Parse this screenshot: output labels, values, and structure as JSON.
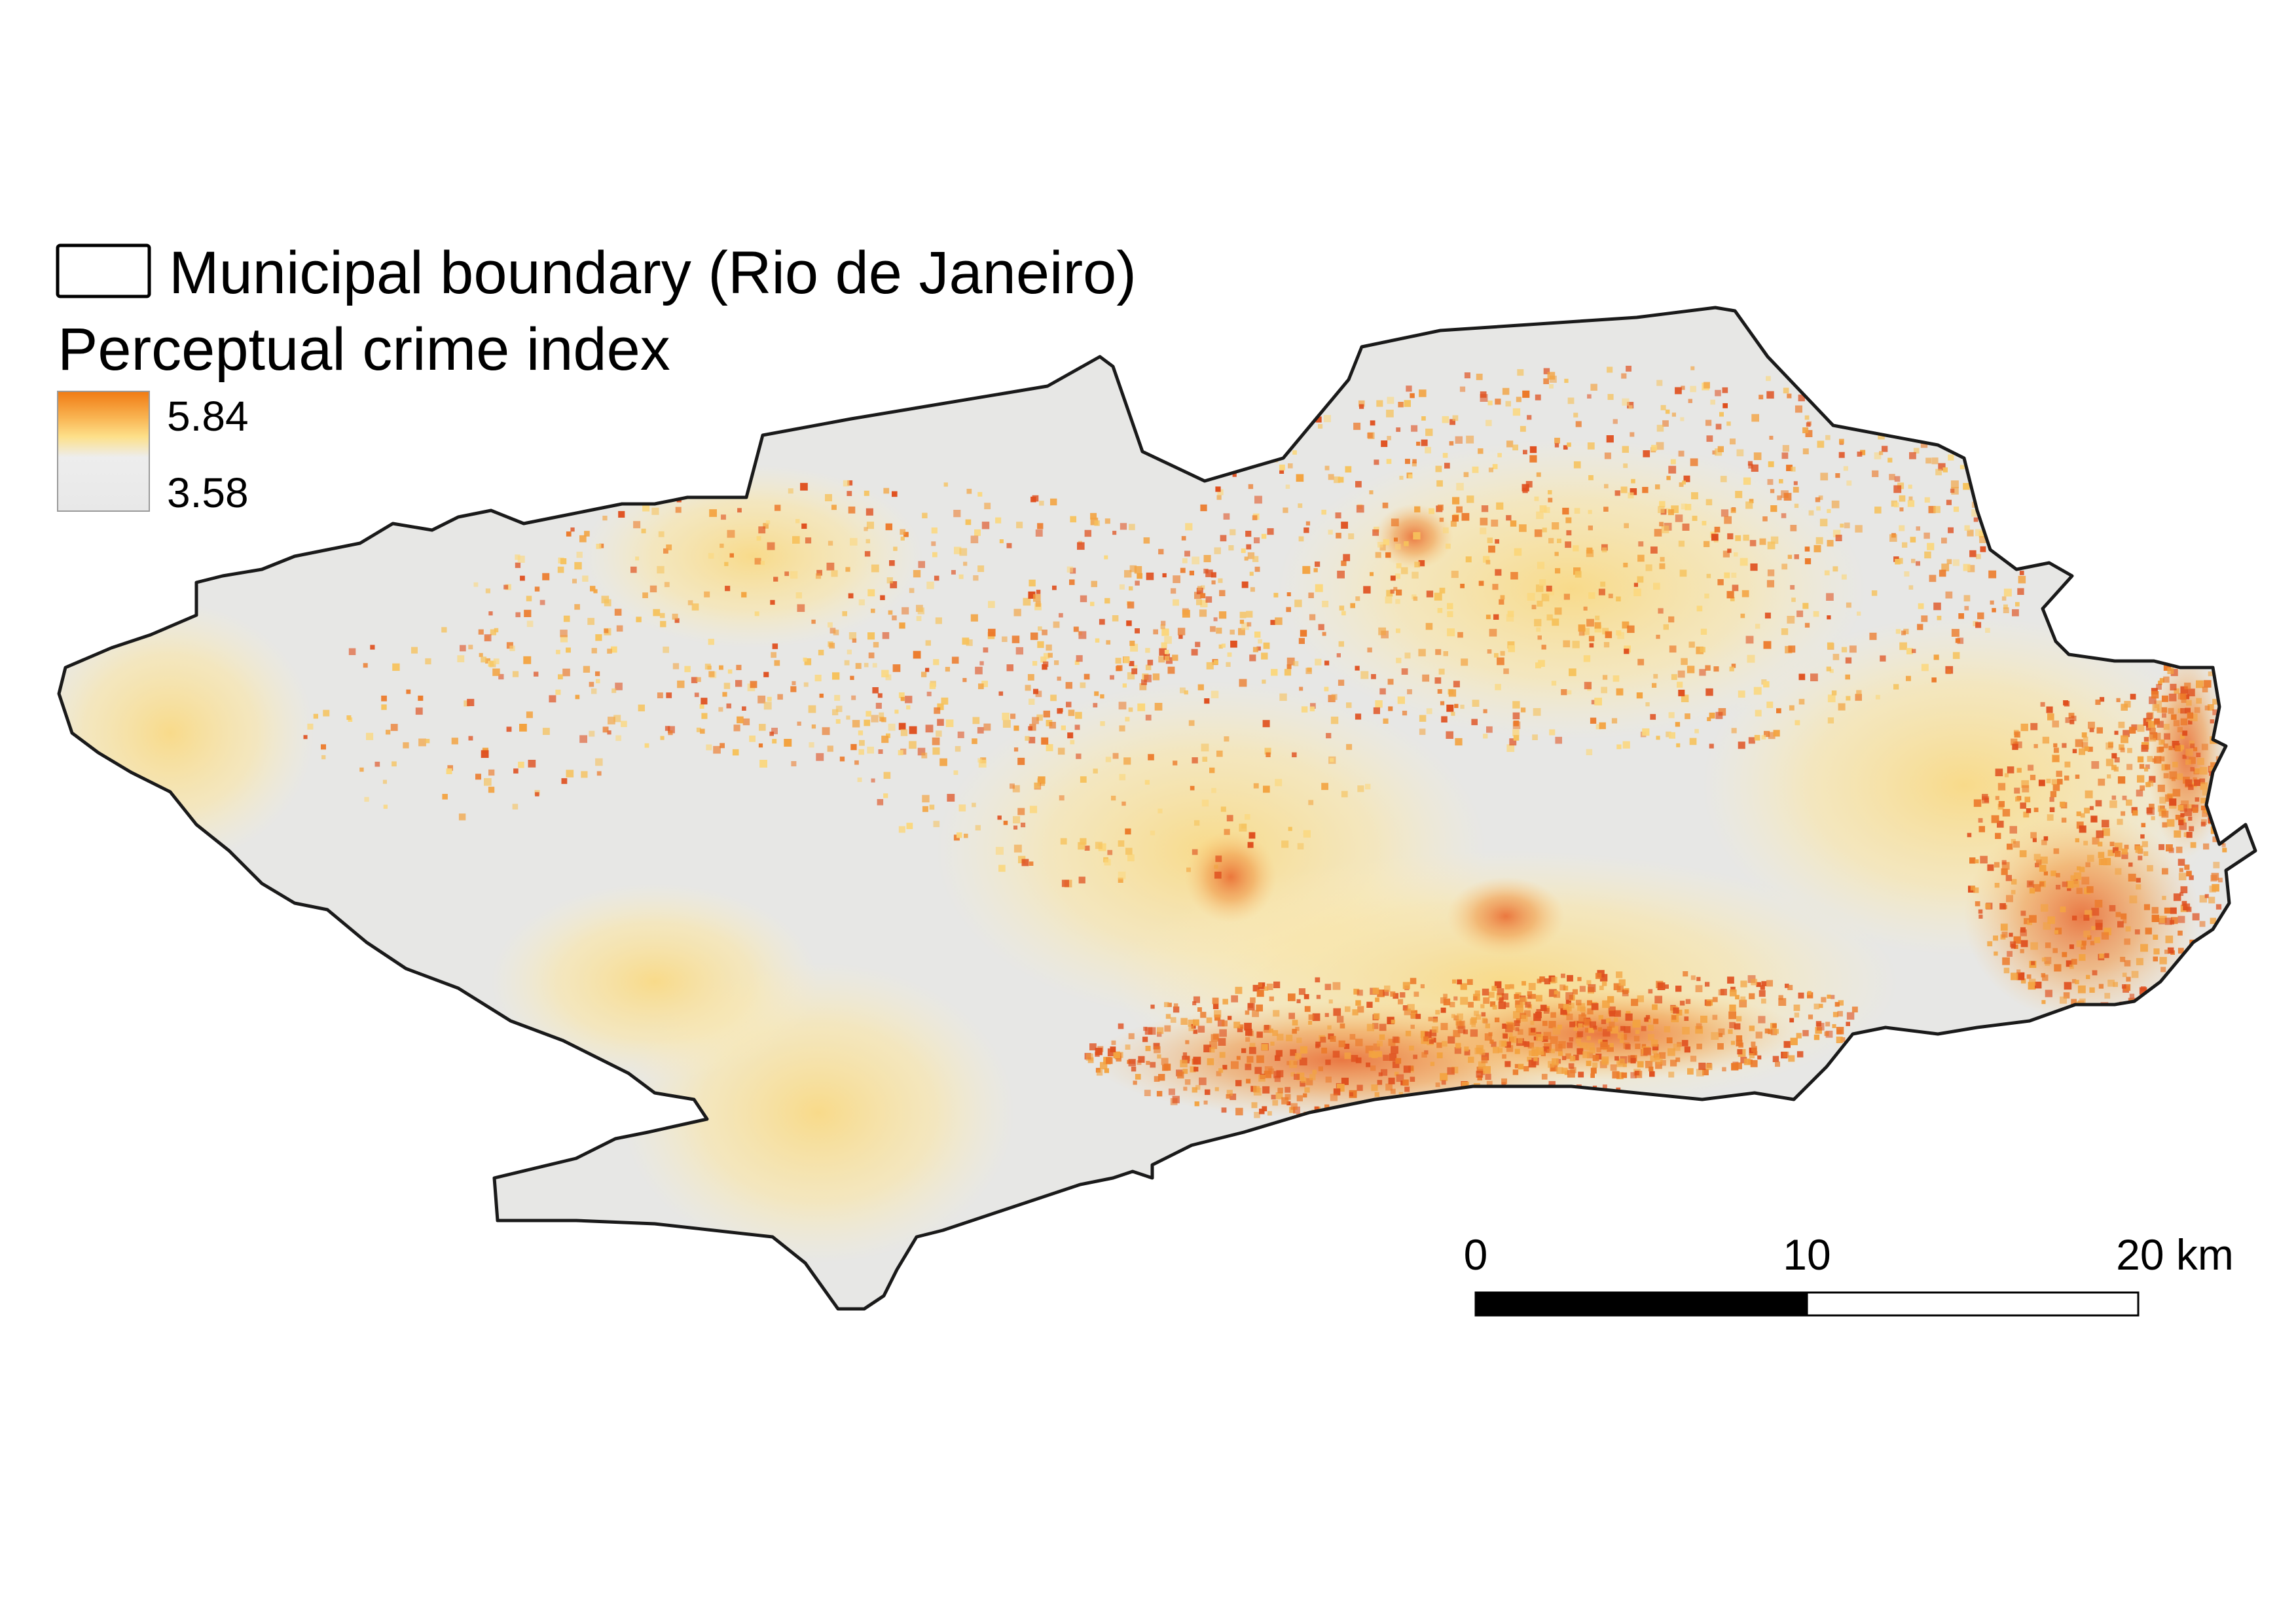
{
  "legend": {
    "boundary_label": "Municipal boundary (Rio de Janeiro)",
    "index_title": "Perceptual crime index",
    "max_label": "5.84",
    "min_label": "3.58",
    "color_low": "#e8e8e8",
    "color_mid": "#fde08a",
    "color_high": "#f07a12"
  },
  "scalebar": {
    "label_0": "0",
    "label_10": "10",
    "label_20": "20 km",
    "color_filled": "#000000",
    "color_empty": "#ffffff"
  },
  "map": {
    "boundary_color": "#1a1a1a",
    "land_base_color": "#e7e7e5"
  }
}
